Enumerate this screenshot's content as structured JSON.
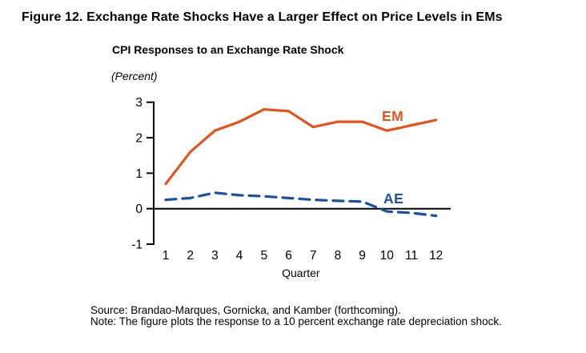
{
  "figure": {
    "title": "Figure 12. Exchange Rate Shocks Have a Larger Effect on Price Levels in EMs",
    "subtitle": "CPI Responses to an Exchange Rate Shock",
    "unit_label": "(Percent)",
    "source": "Source: Brandao-Marques, Gornicka, and Kamber (forthcoming).",
    "note": "Note: The figure plots the response to a 10 percent exchange rate depreciation shock."
  },
  "chart_data": {
    "type": "line",
    "title": "CPI Responses to an Exchange Rate Shock",
    "unit": "Percent",
    "xlabel": "Quarter",
    "x": [
      1,
      2,
      3,
      4,
      5,
      6,
      7,
      8,
      9,
      10,
      11,
      12
    ],
    "ylim": [
      -1,
      3
    ],
    "yticks": [
      -1,
      0,
      1,
      2,
      3
    ],
    "grid": false,
    "legend": "inline-labels",
    "axis_color": "#000000",
    "series": [
      {
        "name": "EM",
        "style": "solid",
        "color": "#E4531B",
        "values": [
          0.7,
          1.6,
          2.2,
          2.45,
          2.8,
          2.75,
          2.3,
          2.45,
          2.45,
          2.2,
          2.35,
          2.5
        ]
      },
      {
        "name": "AE",
        "style": "dashed",
        "color": "#1A519E",
        "values": [
          0.25,
          0.3,
          0.45,
          0.38,
          0.35,
          0.3,
          0.25,
          0.22,
          0.2,
          -0.08,
          -0.12,
          -0.2
        ]
      }
    ]
  }
}
